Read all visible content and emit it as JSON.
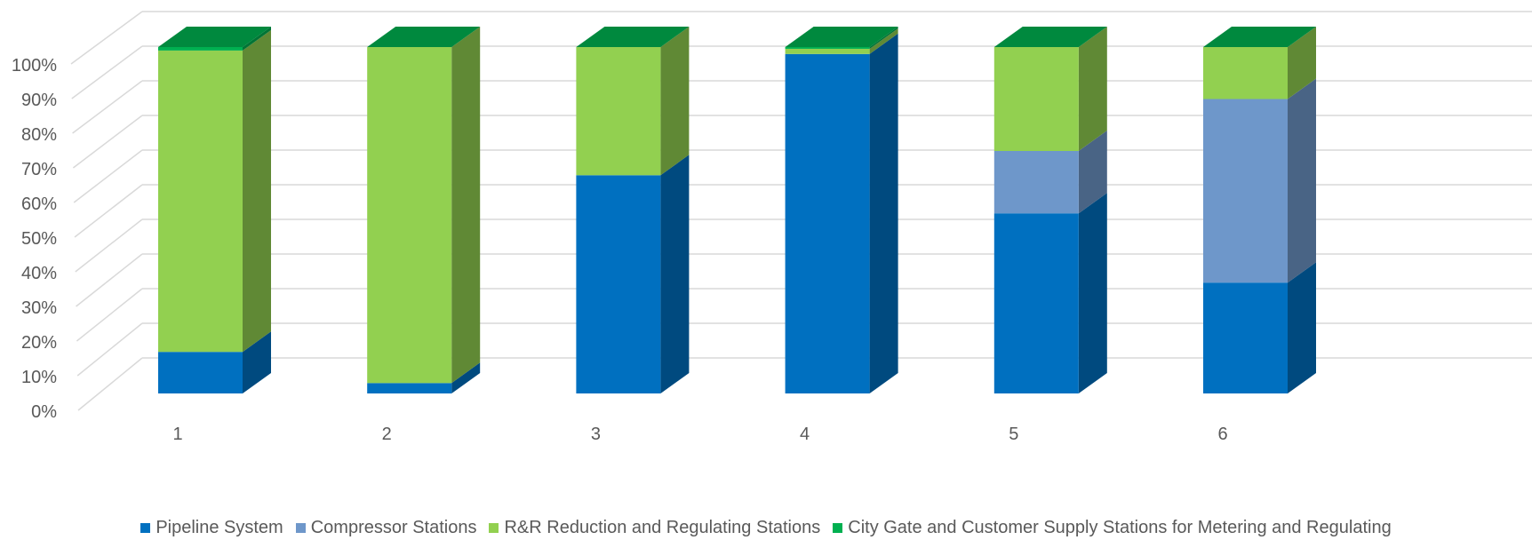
{
  "chart_data": {
    "type": "bar",
    "stacked": true,
    "three_d": true,
    "categories": [
      "1",
      "2",
      "3",
      "4",
      "5",
      "6"
    ],
    "ylim": [
      0,
      100
    ],
    "y_ticks": [
      "0%",
      "10%",
      "20%",
      "30%",
      "40%",
      "50%",
      "60%",
      "70%",
      "80%",
      "90%",
      "100%"
    ],
    "grid": true,
    "legend_position": "bottom",
    "series": [
      {
        "name": "Pipeline System",
        "color": "#0070C0",
        "values": [
          12,
          3,
          63,
          98,
          52,
          32
        ]
      },
      {
        "name": "Compressor Stations",
        "color": "#6E97CA",
        "values": [
          0,
          0,
          0,
          0,
          18,
          53
        ]
      },
      {
        "name": "R&R Reduction and Regulating Stations",
        "color": "#92D050",
        "values": [
          87,
          97,
          37,
          1.5,
          30,
          15
        ]
      },
      {
        "name": "City Gate and Customer Supply Stations for Metering and Regulating",
        "color": "#00B050",
        "values": [
          1,
          0,
          0,
          0.5,
          0,
          0
        ]
      }
    ]
  }
}
